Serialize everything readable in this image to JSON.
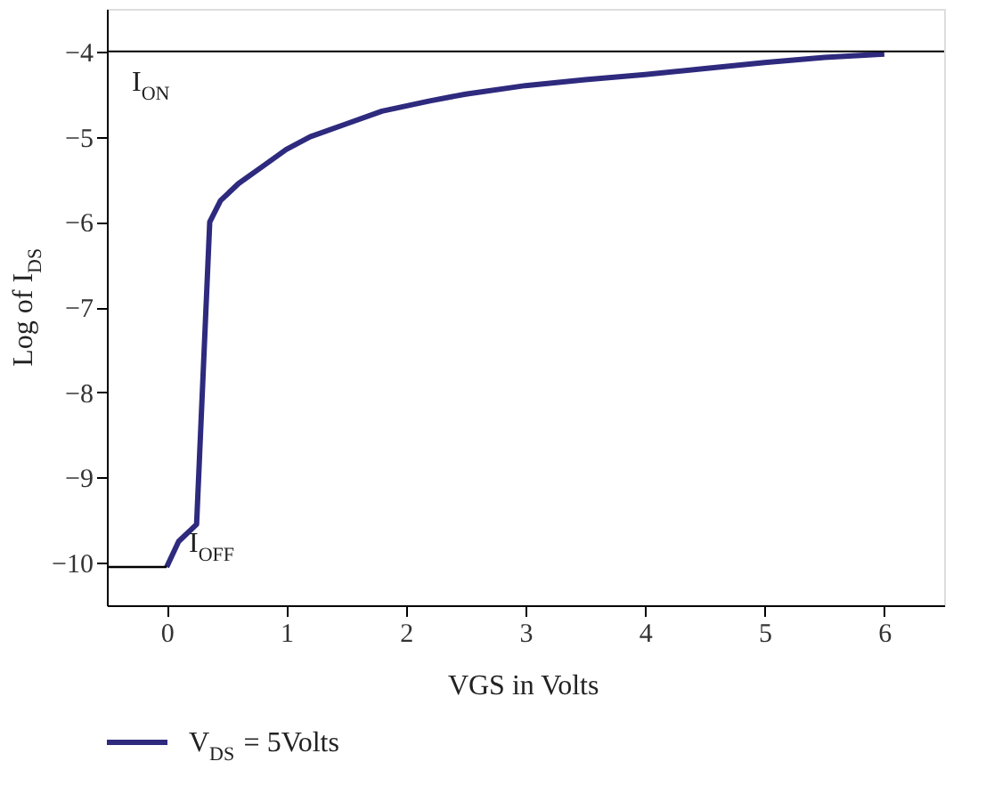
{
  "chart_data": {
    "type": "line",
    "xlabel": "VGS in Volts",
    "ylabel": "Log of I$_{DS}$",
    "xlim": [
      -0.5,
      6.5
    ],
    "ylim": [
      -10.5,
      -3.5
    ],
    "xticks": [
      0,
      1,
      2,
      3,
      4,
      5,
      6
    ],
    "yticks": [
      -10,
      -9,
      -8,
      -7,
      -6,
      -5,
      -4
    ],
    "grid": false,
    "legend": "bottom left",
    "marker": "none",
    "line_style": "solid",
    "series": [
      {
        "name": "V$_{DS}$ = 5Volts",
        "color": "#2e2a7e",
        "x": [
          0,
          0.1,
          0.25,
          0.36,
          0.45,
          0.6,
          0.8,
          1,
          1.2,
          1.5,
          1.8,
          2.2,
          2.5,
          3,
          3.5,
          4,
          4.5,
          5,
          5.5,
          6
        ],
        "values": [
          -10.05,
          -9.75,
          -9.55,
          -6.0,
          -5.75,
          -5.55,
          -5.35,
          -5.15,
          -5.0,
          -4.85,
          -4.7,
          -4.58,
          -4.5,
          -4.4,
          -4.33,
          -4.27,
          -4.2,
          -4.13,
          -4.07,
          -4.03
        ]
      },
      {
        "type": "line",
        "color": "#000000",
        "x": [
          -0.5,
          0
        ],
        "values": [
          -10.05,
          -10.05
        ]
      }
    ],
    "ref_lines": [
      {
        "axis": "y",
        "value": -4,
        "label": "I$_{ON}$",
        "color": "#000000"
      }
    ],
    "annotations": [
      "I$_{OFF}$"
    ]
  }
}
